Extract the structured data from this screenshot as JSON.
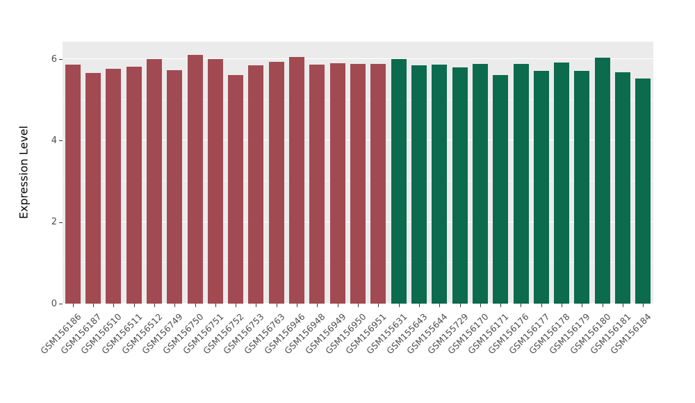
{
  "chart_data": {
    "type": "bar",
    "title": "",
    "xlabel": "",
    "ylabel": "Expression Level",
    "ylim": [
      0,
      6.43
    ],
    "yticks": [
      0,
      2,
      4,
      6
    ],
    "yticks_minor": [
      1,
      3,
      5
    ],
    "grid": "on",
    "legend_position": "none",
    "panel_background": "#EBEBEB",
    "group_colors": {
      "red": "#A24A52",
      "green": "#0B6B4C"
    },
    "categories": [
      "GSM156186",
      "GSM156187",
      "GSM156510",
      "GSM156511",
      "GSM156512",
      "GSM156749",
      "GSM156750",
      "GSM156751",
      "GSM156752",
      "GSM156753",
      "GSM156763",
      "GSM156946",
      "GSM156948",
      "GSM156949",
      "GSM156950",
      "GSM156951",
      "GSM155631",
      "GSM155643",
      "GSM155644",
      "GSM155729",
      "GSM156170",
      "GSM156171",
      "GSM156176",
      "GSM156177",
      "GSM156178",
      "GSM156179",
      "GSM156180",
      "GSM156181",
      "GSM156184"
    ],
    "values": [
      5.86,
      5.66,
      5.76,
      5.81,
      6.0,
      5.73,
      6.11,
      6.01,
      5.61,
      5.85,
      5.93,
      6.06,
      5.87,
      5.91,
      5.88,
      5.89,
      6.0,
      5.85,
      5.87,
      5.8,
      5.89,
      5.61,
      5.89,
      5.72,
      5.92,
      5.71,
      6.04,
      5.68,
      5.53
    ],
    "groups": [
      "red",
      "red",
      "red",
      "red",
      "red",
      "red",
      "red",
      "red",
      "red",
      "red",
      "red",
      "red",
      "red",
      "red",
      "red",
      "red",
      "green",
      "green",
      "green",
      "green",
      "green",
      "green",
      "green",
      "green",
      "green",
      "green",
      "green",
      "green",
      "green"
    ]
  }
}
